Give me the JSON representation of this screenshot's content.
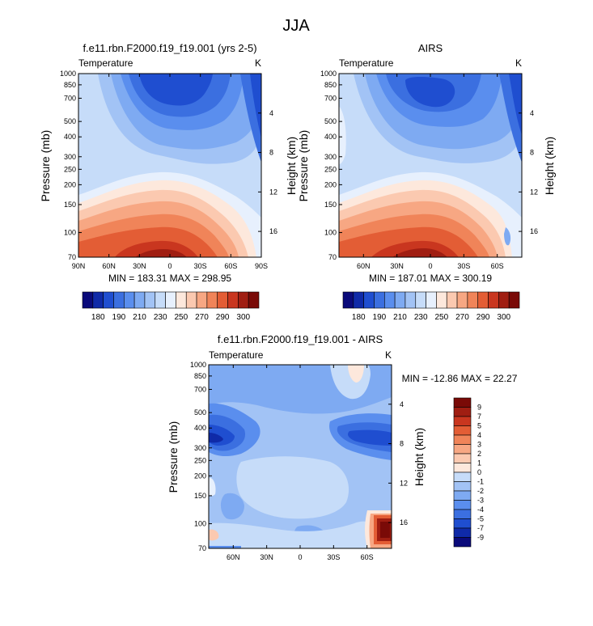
{
  "figure": {
    "title": "JJA"
  },
  "colors": {
    "abs": [
      "#0a0a7a",
      "#0f2aa8",
      "#1f4ed0",
      "#3b6fe0",
      "#5a8eee",
      "#7eaaf2",
      "#a2c3f5",
      "#c6dcf9",
      "#e7f0fd",
      "#fde8dc",
      "#fbc9b0",
      "#f7a783",
      "#f08459",
      "#e35d35",
      "#c9361f",
      "#a01e12",
      "#7a0a07"
    ],
    "diff": [
      "#0a0a7a",
      "#0f2aa8",
      "#1f4ed0",
      "#3b6fe0",
      "#5a8eee",
      "#7eaaf2",
      "#a2c3f5",
      "#c6dcf9",
      "#e7f0fd",
      "#fde8dc",
      "#fbc9b0",
      "#f7a783",
      "#f08459",
      "#e35d35",
      "#c9361f",
      "#a01e12",
      "#7a0a07"
    ]
  },
  "chart_data": [
    {
      "type": "heatmap",
      "title": "f.e11.rbn.F2000.f19_f19.001 (yrs 2-5)",
      "corner_left": "Temperature",
      "corner_right": "K",
      "xlabel": "",
      "ylabel": "Pressure (mb)",
      "y2label": "Height (km)",
      "x_ticks": [
        "90N",
        "60N",
        "30N",
        "0",
        "30S",
        "60S",
        "90S"
      ],
      "x_values": [
        90,
        60,
        30,
        0,
        -30,
        -60,
        -90
      ],
      "xlim": [
        90,
        -90
      ],
      "y_ticks": [
        "70",
        "100",
        "150",
        "200",
        "250",
        "300",
        "400",
        "500",
        "700",
        "850",
        "1000"
      ],
      "y_values": [
        70,
        100,
        150,
        200,
        250,
        300,
        400,
        500,
        700,
        850,
        1000
      ],
      "ylim": [
        1000,
        70
      ],
      "y2_ticks": [
        "4",
        "8",
        "12",
        "16"
      ],
      "y2_values": [
        4,
        8,
        12,
        16
      ],
      "stats_text": "MIN = 183.31   MAX = 298.95",
      "min": 183.31,
      "max": 298.95,
      "contour_levels": [
        180,
        185,
        190,
        195,
        200,
        210,
        220,
        230,
        240,
        250,
        260,
        270,
        280,
        285,
        290,
        295,
        300
      ],
      "colorbar_labels": [
        "180",
        "190",
        "210",
        "230",
        "250",
        "270",
        "290",
        "300"
      ],
      "colorbar_label_boundaries": [
        1,
        3,
        5,
        7,
        9,
        11,
        13,
        15
      ]
    },
    {
      "type": "heatmap",
      "title": "AIRS",
      "corner_left": "Temperature",
      "corner_right": "K",
      "xlabel": "",
      "ylabel": "Pressure (mb)",
      "y2label": "Height (km)",
      "x_ticks": [
        "60N",
        "30N",
        "0",
        "30S",
        "60S"
      ],
      "x_values": [
        60,
        30,
        0,
        -30,
        -60
      ],
      "xlim": [
        82,
        -82
      ],
      "y_ticks": [
        "70",
        "100",
        "150",
        "200",
        "250",
        "300",
        "400",
        "500",
        "700",
        "850",
        "1000"
      ],
      "y_values": [
        70,
        100,
        150,
        200,
        250,
        300,
        400,
        500,
        700,
        850,
        1000
      ],
      "ylim": [
        1000,
        70
      ],
      "y2_ticks": [
        "4",
        "8",
        "12",
        "16"
      ],
      "y2_values": [
        4,
        8,
        12,
        16
      ],
      "stats_text": "MIN = 187.01   MAX = 300.19",
      "min": 187.01,
      "max": 300.19,
      "contour_levels": [
        180,
        185,
        190,
        195,
        200,
        210,
        220,
        230,
        240,
        250,
        260,
        270,
        280,
        285,
        290,
        295,
        300
      ],
      "colorbar_labels": [
        "180",
        "190",
        "210",
        "230",
        "250",
        "270",
        "290",
        "300"
      ],
      "colorbar_label_boundaries": [
        1,
        3,
        5,
        7,
        9,
        11,
        13,
        15
      ]
    },
    {
      "type": "heatmap",
      "title": "f.e11.rbn.F2000.f19_f19.001 - AIRS",
      "corner_left": "Temperature",
      "corner_right": "K",
      "xlabel": "",
      "ylabel": "Pressure (mb)",
      "y2label": "Height (km)",
      "x_ticks": [
        "60N",
        "30N",
        "0",
        "30S",
        "60S"
      ],
      "x_values": [
        60,
        30,
        0,
        -30,
        -60
      ],
      "xlim": [
        82,
        -82
      ],
      "y_ticks": [
        "70",
        "100",
        "150",
        "200",
        "250",
        "300",
        "400",
        "500",
        "700",
        "850",
        "1000"
      ],
      "y_values": [
        70,
        100,
        150,
        200,
        250,
        300,
        400,
        500,
        700,
        850,
        1000
      ],
      "ylim": [
        1000,
        70
      ],
      "y2_ticks": [
        "4",
        "8",
        "12",
        "16"
      ],
      "y2_values": [
        4,
        8,
        12,
        16
      ],
      "stats_text": "MIN = -12.86   MAX =  22.27",
      "min": -12.86,
      "max": 22.27,
      "contour_levels": [
        -9,
        -7,
        -5,
        -4,
        -3,
        -2,
        -1,
        0,
        1,
        2,
        3,
        4,
        5,
        7,
        9
      ],
      "colorbar_labels": [
        "9",
        "7",
        "5",
        "4",
        "3",
        "2",
        "1",
        "0",
        "-1",
        "-2",
        "-3",
        "-4",
        "-5",
        "-7",
        "-9"
      ]
    }
  ]
}
